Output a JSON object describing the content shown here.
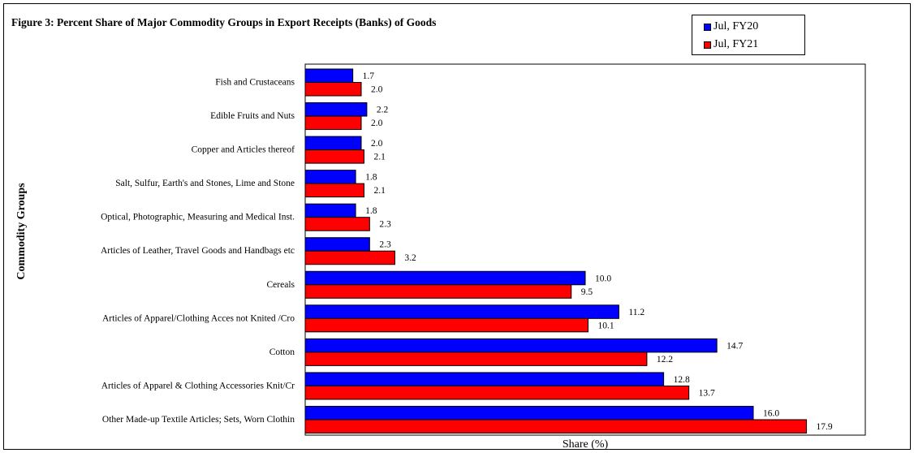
{
  "chart_data": {
    "type": "bar",
    "orientation": "horizontal",
    "title": "Figure 3: Percent Share of Major Commodity Groups in Export Receipts (Banks) of Goods",
    "xlabel": "Share (%)",
    "ylabel": "Commodity Groups",
    "xlim": [
      0,
      20
    ],
    "grid": false,
    "legend_position": "top-right",
    "categories": [
      "Fish and Crustaceans",
      "Edible Fruits and Nuts",
      "Copper and Articles thereof",
      "Salt, Sulfur, Earth's and Stones, Lime and Stone",
      "Optical, Photographic, Measuring and Medical Inst.",
      "Articles of Leather, Travel Goods and Handbags etc",
      "Cereals",
      "Articles of Apparel/Clothing Acces not Knited /Cro",
      "Cotton",
      "Articles of Apparel & Clothing Accessories Knit/Cr",
      "Other Made-up Textile Articles; Sets, Worn Clothin"
    ],
    "series": [
      {
        "name": "Jul, FY20",
        "color": "#0000ff",
        "values": [
          1.7,
          2.2,
          2.0,
          1.8,
          1.8,
          2.3,
          10.0,
          11.2,
          14.7,
          12.8,
          16.0
        ]
      },
      {
        "name": "Jul, FY21",
        "color": "#ff0000",
        "values": [
          2.0,
          2.0,
          2.1,
          2.1,
          2.3,
          3.2,
          9.5,
          10.1,
          12.2,
          13.7,
          17.9
        ]
      }
    ]
  }
}
